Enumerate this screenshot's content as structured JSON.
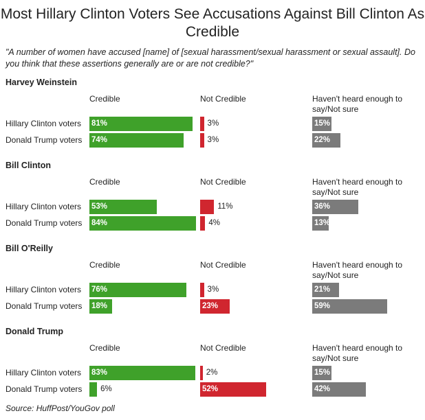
{
  "colors": {
    "credible": "#3fa12a",
    "not_credible": "#d0262f",
    "not_sure": "#7b7b7b"
  },
  "chart_data": {
    "type": "bar",
    "title": "Most Hillary Clinton Voters See Accusations Against Bill Clinton As Credible",
    "question": "\"A number of women have accused [name] of [sexual harassment/sexual harassment or sexual assault]. Do you think that these assertions generally are or are not credible?\"",
    "source": "Source: HuffPost/YouGov poll",
    "columns": [
      "Credible",
      "Not Credible",
      "Haven't heard enough to say/Not sure"
    ],
    "groups": [
      "Hillary Clinton voters",
      "Donald Trump voters"
    ],
    "units": "%",
    "sections": [
      {
        "name": "Harvey Weinstein",
        "rows": [
          {
            "group": "Hillary Clinton voters",
            "values": [
              81,
              3,
              15
            ]
          },
          {
            "group": "Donald Trump voters",
            "values": [
              74,
              3,
              22
            ]
          }
        ]
      },
      {
        "name": "Bill Clinton",
        "rows": [
          {
            "group": "Hillary Clinton voters",
            "values": [
              53,
              11,
              36
            ]
          },
          {
            "group": "Donald Trump voters",
            "values": [
              84,
              4,
              13
            ]
          }
        ]
      },
      {
        "name": "Bill O'Reilly",
        "rows": [
          {
            "group": "Hillary Clinton voters",
            "values": [
              76,
              3,
              21
            ]
          },
          {
            "group": "Donald Trump voters",
            "values": [
              18,
              23,
              59
            ]
          }
        ]
      },
      {
        "name": "Donald Trump",
        "rows": [
          {
            "group": "Hillary Clinton voters",
            "values": [
              83,
              2,
              15
            ]
          },
          {
            "group": "Donald Trump voters",
            "values": [
              6,
              52,
              42
            ]
          }
        ]
      }
    ]
  }
}
